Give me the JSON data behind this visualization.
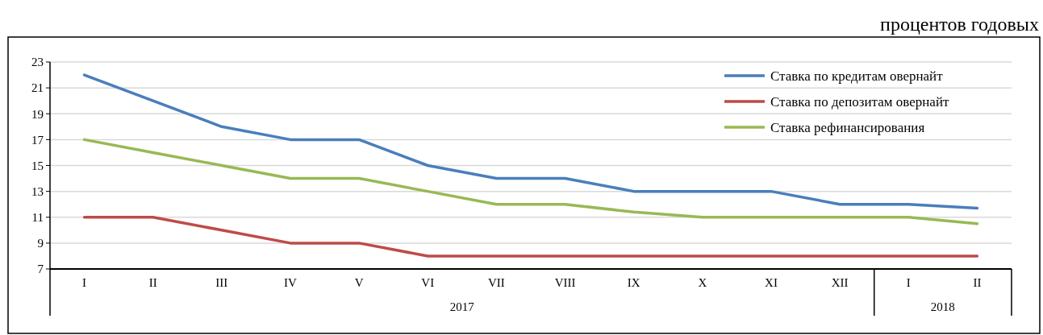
{
  "chart_data": {
    "type": "line",
    "subtitle": "процентов годовых",
    "categories": [
      "I",
      "II",
      "III",
      "IV",
      "V",
      "VI",
      "VII",
      "VIII",
      "IX",
      "X",
      "XI",
      "XII",
      "I",
      "II"
    ],
    "series": [
      {
        "name": "Ставка по кредитам овернайт",
        "color": "#4a7ebb",
        "values": [
          22,
          20,
          18,
          17,
          17,
          15,
          14,
          14,
          13,
          13,
          13,
          12,
          12,
          11.7
        ]
      },
      {
        "name": "Ставка по депозитам овернайт",
        "color": "#be4b48",
        "values": [
          11,
          11,
          10,
          9,
          9,
          8,
          8,
          8,
          8,
          8,
          8,
          8,
          8,
          8
        ]
      },
      {
        "name": "Ставка рефинансирования",
        "color": "#98b954",
        "values": [
          17,
          16,
          15,
          14,
          14,
          13,
          12,
          12,
          11.4,
          11,
          11,
          11,
          11,
          10.5
        ]
      }
    ],
    "annotations": [
      "2017",
      "2018"
    ],
    "ylim": [
      7,
      23
    ],
    "yticks": [
      7,
      9,
      11,
      13,
      15,
      17,
      19,
      21,
      23
    ],
    "grid": "y",
    "legend": "top right",
    "marker": "none",
    "line_style": "solid"
  }
}
